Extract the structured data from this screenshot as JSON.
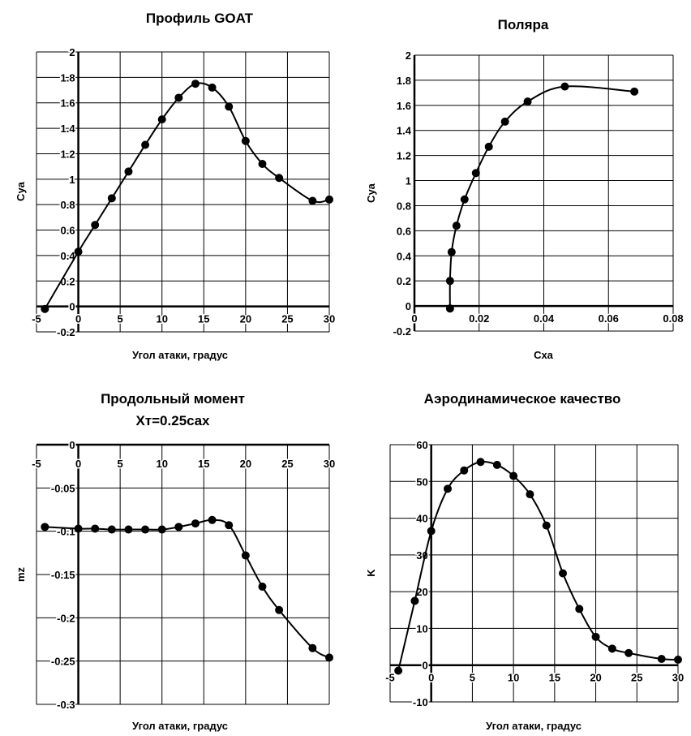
{
  "chart_data": [
    {
      "type": "line",
      "title": "Профиль GOAT",
      "xlabel": "Угол атаки, градус",
      "ylabel": "Cya",
      "xlim": [
        -5,
        30
      ],
      "ylim": [
        -0.2,
        2
      ],
      "xticks": [
        -5,
        0,
        5,
        10,
        15,
        20,
        25,
        30
      ],
      "xtick_labels": [
        "-5",
        "0",
        "5",
        "10",
        "15",
        "20",
        "25",
        "30"
      ],
      "yticks": [
        -0.2,
        0,
        0.2,
        0.4,
        0.6,
        0.8,
        1,
        1.2,
        1.4,
        1.6,
        1.8,
        2
      ],
      "ytick_labels": [
        "-0.2",
        "0",
        "0.2",
        "0.4",
        "0.6",
        "0.8",
        "1",
        "1.2",
        "1.4",
        "1.6",
        "1.8",
        "2"
      ],
      "x": [
        -4,
        0,
        2,
        4,
        6,
        8,
        10,
        12,
        14,
        16,
        18,
        20,
        22,
        24,
        28,
        30
      ],
      "y": [
        -0.02,
        0.43,
        0.64,
        0.85,
        1.06,
        1.27,
        1.47,
        1.64,
        1.75,
        1.72,
        1.57,
        1.3,
        1.12,
        1.01,
        0.83,
        0.84
      ],
      "grid": true
    },
    {
      "type": "line",
      "title": "Поляра",
      "xlabel": "Cxa",
      "ylabel": "Cya",
      "xlim": [
        0,
        0.08
      ],
      "ylim": [
        -0.2,
        2
      ],
      "xticks": [
        0,
        0.02,
        0.04,
        0.06,
        0.08
      ],
      "xtick_labels": [
        "0",
        "0.02",
        "0.04",
        "0.06",
        "0.08"
      ],
      "yticks": [
        -0.2,
        0,
        0.2,
        0.4,
        0.6,
        0.8,
        1,
        1.2,
        1.4,
        1.6,
        1.8,
        2
      ],
      "ytick_labels": [
        "-0.2",
        "0",
        "0.2",
        "0.4",
        "0.6",
        "0.8",
        "1",
        "1.2",
        "1.4",
        "1.6",
        "1.8",
        "2"
      ],
      "x": [
        0.011,
        0.011,
        0.0115,
        0.013,
        0.0155,
        0.019,
        0.023,
        0.028,
        0.035,
        0.0465,
        0.068
      ],
      "y": [
        -0.02,
        0.2,
        0.43,
        0.64,
        0.85,
        1.06,
        1.27,
        1.47,
        1.63,
        1.75,
        1.71
      ],
      "grid": true
    },
    {
      "type": "line",
      "title": "Продольный момент",
      "subtitle": "Xт=0.25cax",
      "xlabel": "Угол атаки, градус",
      "ylabel": "mz",
      "xlim": [
        -5,
        30
      ],
      "ylim": [
        -0.3,
        0
      ],
      "xticks": [
        -5,
        0,
        5,
        10,
        15,
        20,
        25,
        30
      ],
      "xtick_labels": [
        "-5",
        "0",
        "5",
        "10",
        "15",
        "20",
        "25",
        "30"
      ],
      "yticks": [
        -0.3,
        -0.25,
        -0.2,
        -0.15,
        -0.1,
        -0.05,
        0
      ],
      "ytick_labels": [
        "-0.3",
        "-0.25",
        "-0.2",
        "-0.15",
        "-0.1",
        "-0.05",
        "0"
      ],
      "x": [
        -4,
        0,
        2,
        4,
        6,
        8,
        10,
        12,
        14,
        16,
        18,
        20,
        22,
        24,
        28,
        30
      ],
      "y": [
        -0.095,
        -0.097,
        -0.097,
        -0.098,
        -0.098,
        -0.098,
        -0.098,
        -0.095,
        -0.091,
        -0.087,
        -0.093,
        -0.128,
        -0.164,
        -0.191,
        -0.235,
        -0.246
      ],
      "grid": true
    },
    {
      "type": "line",
      "title": "Аэродинамическое качество",
      "xlabel": "Угол атаки, градус",
      "ylabel": "K",
      "xlim": [
        -5,
        30
      ],
      "ylim": [
        -10,
        60
      ],
      "xticks": [
        -5,
        0,
        5,
        10,
        15,
        20,
        25,
        30
      ],
      "xtick_labels": [
        "-5",
        "0",
        "5",
        "10",
        "15",
        "20",
        "25",
        "30"
      ],
      "yticks": [
        -10,
        0,
        10,
        20,
        30,
        40,
        50,
        60
      ],
      "ytick_labels": [
        "-10",
        "0",
        "10",
        "20",
        "30",
        "40",
        "50",
        "60"
      ],
      "x": [
        -4,
        -2,
        0,
        2,
        4,
        6,
        8,
        10,
        12,
        14,
        16,
        18,
        20,
        22,
        24,
        28,
        30
      ],
      "y": [
        -1.5,
        17.5,
        36.5,
        48,
        53,
        55.3,
        54.5,
        51.5,
        46.5,
        38,
        25,
        15.3,
        7.7,
        4.5,
        3.3,
        1.7,
        1.5
      ],
      "grid": true
    }
  ]
}
